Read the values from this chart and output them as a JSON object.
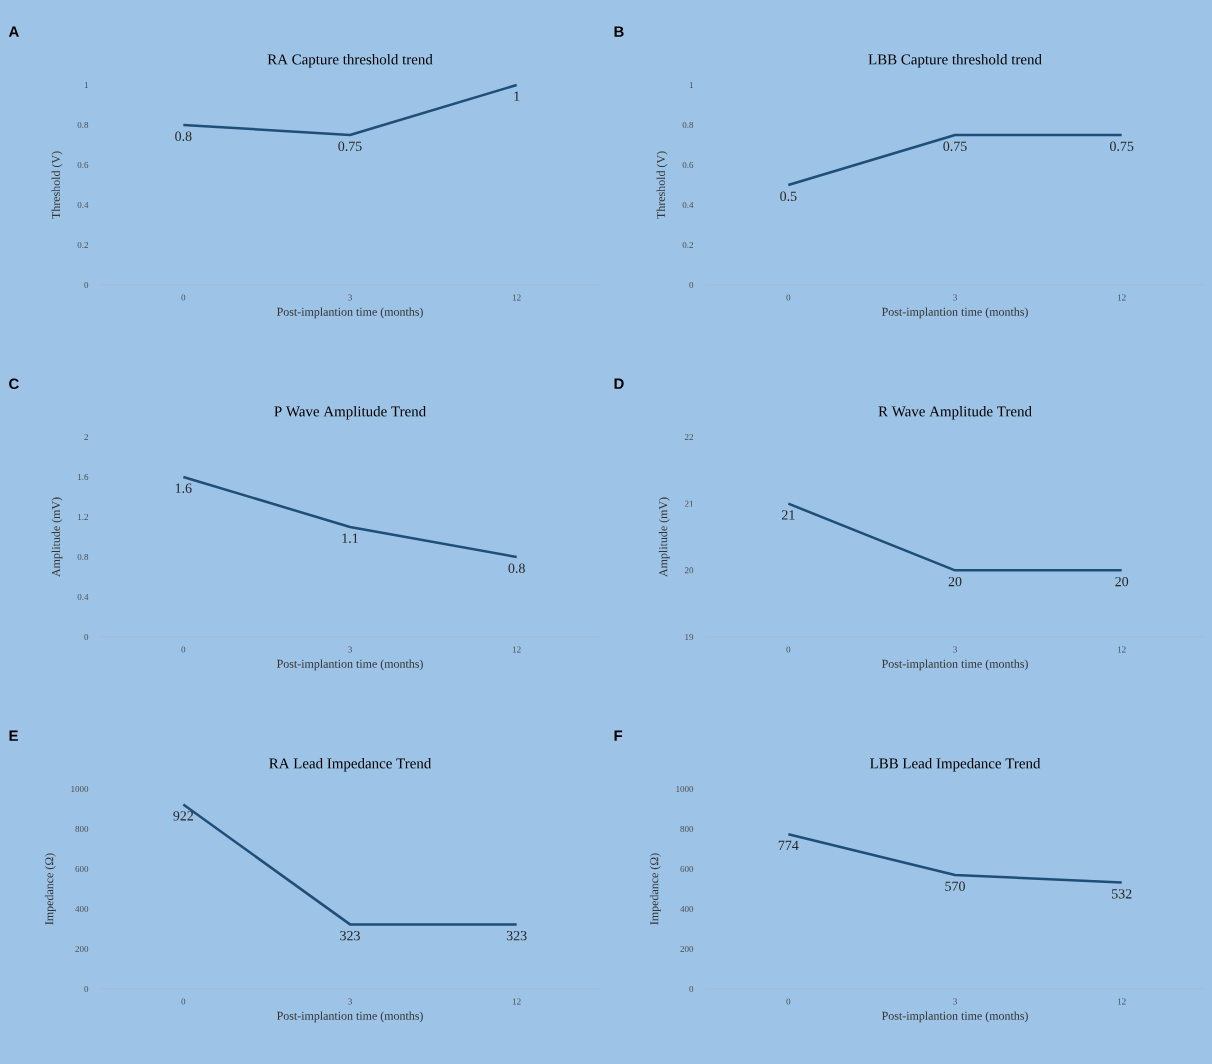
{
  "chart_data": [
    {
      "type": "line",
      "title": "RA Capture threshold trend",
      "xlabel": "Post-implantion time (months)",
      "ylabel": "Threshold (V)",
      "categories": [
        "0",
        "3",
        "12"
      ],
      "values": [
        0.8,
        0.75,
        1
      ],
      "color": "#1f4e79",
      "ylim": [
        0,
        1
      ],
      "yticks": [
        0,
        0.2,
        0.4,
        0.6,
        0.8,
        1
      ],
      "data_labels": true,
      "annotations": [
        "A"
      ]
    },
    {
      "type": "line",
      "title": "LBB Capture threshold trend",
      "xlabel": "Post-implantion time (months)",
      "ylabel": "Threshold (V)",
      "categories": [
        "0",
        "3",
        "12"
      ],
      "values": [
        0.5,
        0.75,
        0.75
      ],
      "color": "#1f4e79",
      "ylim": [
        0,
        1
      ],
      "yticks": [
        0,
        0.2,
        0.4,
        0.6,
        0.8,
        1
      ],
      "data_labels": true,
      "annotations": [
        "B"
      ]
    },
    {
      "type": "line",
      "title": "P Wave Amplitude Trend",
      "xlabel": "Post-implantion time (months)",
      "ylabel": "Amplitude (mV)",
      "categories": [
        "0",
        "3",
        "12"
      ],
      "values": [
        1.6,
        1.1,
        0.8
      ],
      "color": "#1f4e79",
      "ylim": [
        0,
        2
      ],
      "yticks": [
        0,
        0.4,
        0.8,
        1.2,
        1.6,
        2
      ],
      "data_labels": true,
      "annotations": [
        "C"
      ]
    },
    {
      "type": "line",
      "title": "R Wave Amplitude Trend",
      "xlabel": "Post-implantion time (months)",
      "ylabel": "Amplitude (mV)",
      "categories": [
        "0",
        "3",
        "12"
      ],
      "values": [
        21,
        20,
        20
      ],
      "color": "#1f4e79",
      "ylim": [
        19,
        22
      ],
      "yticks": [
        19,
        20,
        21,
        22
      ],
      "data_labels": true,
      "annotations": [
        "D"
      ]
    },
    {
      "type": "line",
      "title": "RA  Lead Impedance Trend",
      "xlabel": "Post-implantion time (months)",
      "ylabel": "Impedance (Ω)",
      "categories": [
        "0",
        "3",
        "12"
      ],
      "values": [
        922,
        323,
        323
      ],
      "color": "#1f4e79",
      "ylim": [
        0,
        1000
      ],
      "yticks": [
        0,
        200,
        400,
        600,
        800,
        1000
      ],
      "data_labels": true,
      "annotations": [
        "E"
      ]
    },
    {
      "type": "line",
      "title": "LBB Lead Impedance Trend",
      "xlabel": "Post-implantion time (months)",
      "ylabel": "Impedance (Ω)",
      "categories": [
        "0",
        "3",
        "12"
      ],
      "values": [
        774,
        570,
        532
      ],
      "color": "#1f4e79",
      "ylim": [
        0,
        1000
      ],
      "yticks": [
        0,
        200,
        400,
        600,
        800,
        1000
      ],
      "data_labels": true,
      "annotations": [
        "F"
      ]
    }
  ]
}
